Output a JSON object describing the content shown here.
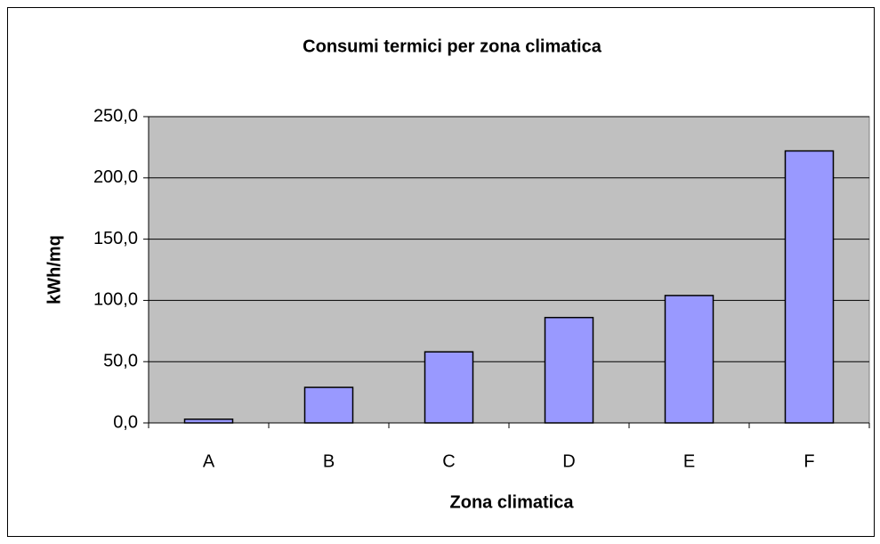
{
  "chart_data": {
    "type": "bar",
    "title": "Consumi termici per zona climatica",
    "x_label": "Zona climatica",
    "y_label": "kWh/mq",
    "categories": [
      "A",
      "B",
      "C",
      "D",
      "E",
      "F"
    ],
    "values": [
      3,
      29,
      58,
      86,
      104,
      222
    ],
    "color": "#9999ff",
    "ylim": [
      0,
      250
    ],
    "yticks": [
      {
        "value": 0,
        "label": "0,0"
      },
      {
        "value": 50,
        "label": "50,0"
      },
      {
        "value": 100,
        "label": "100,0"
      },
      {
        "value": 150,
        "label": "150,0"
      },
      {
        "value": 200,
        "label": "200,0"
      },
      {
        "value": 250,
        "label": "250,0"
      }
    ],
    "grid": true
  }
}
